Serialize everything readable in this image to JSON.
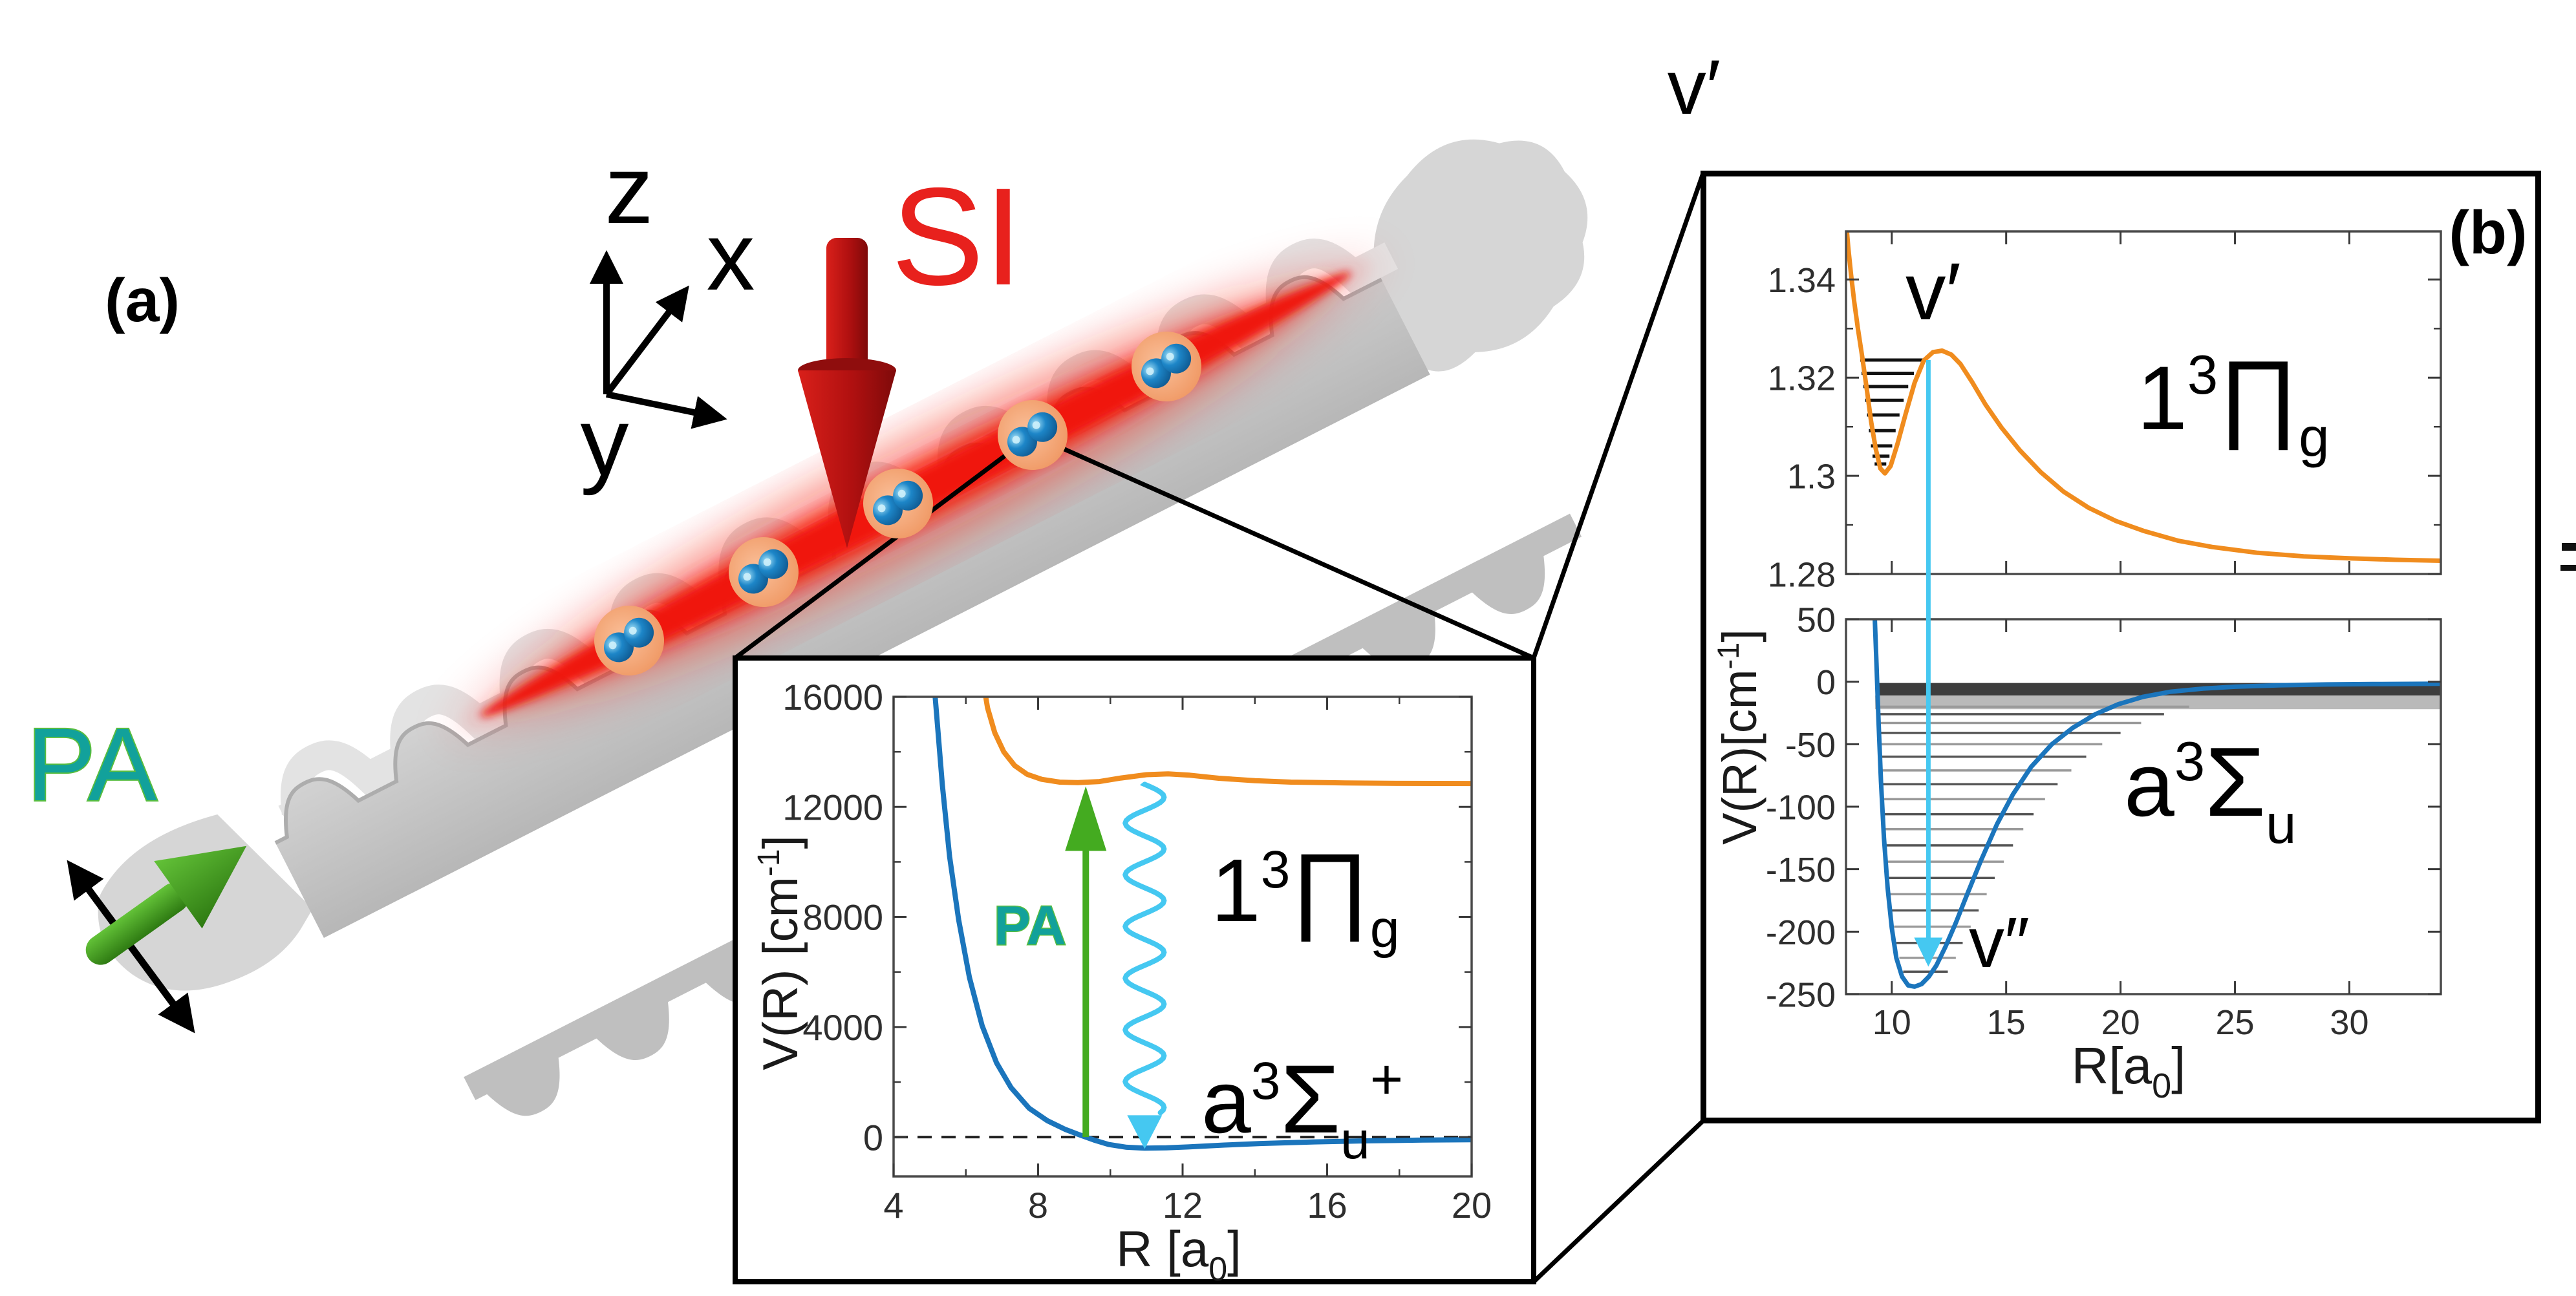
{
  "panel_a": {
    "label": "(a)",
    "axis_z": "z",
    "axis_x": "x",
    "axis_y": "y",
    "si_label": "SI",
    "pa_label": "PA",
    "atom_pair_count": 5,
    "colors": {
      "si_red": "#e8211d",
      "pa_teal": "#12a19b",
      "pa_text_stroke": "#58bd3e",
      "pa_arrow_green": "#4d9e28",
      "beam_red": "#f01c0c",
      "waveguide_gray": "#c6c6c6",
      "atom_blue": "#1d86c8",
      "atom_halo_peach": "#f5a876"
    }
  },
  "panel_b": {
    "label": "(b)",
    "v_prime_outer": "v′"
  },
  "chart_data": [
    {
      "id": "inset",
      "type": "line",
      "xlabel_parts": {
        "pre": "R [a",
        "sub": "0",
        "post": "]"
      },
      "ylabel_parts": {
        "pre": "V(R) [cm",
        "sup": "-1",
        "post": "]"
      },
      "xlim": [
        4,
        20
      ],
      "ylim": [
        -1430,
        16000
      ],
      "xticks": [
        4,
        8,
        12,
        16,
        20
      ],
      "xtick_labels": [
        "4",
        "8",
        "12",
        "16",
        "20"
      ],
      "xticks_minor": [
        6,
        10,
        14,
        18
      ],
      "yticks": [
        0,
        4000,
        8000,
        12000,
        16000
      ],
      "ytick_labels": [
        "0",
        "4000",
        "8000",
        "12000",
        "16000"
      ],
      "yticks_minor": [
        2000,
        6000,
        10000,
        14000
      ],
      "zero_line": 0,
      "series": [
        {
          "name": "a3Sigma_u_plus",
          "color": "#1b75bc",
          "width": 8,
          "x": [
            5.1,
            5.2,
            5.35,
            5.55,
            5.8,
            6.1,
            6.45,
            6.85,
            7.25,
            7.75,
            8.25,
            8.75,
            9.15,
            9.55,
            9.95,
            10.45,
            10.95,
            11.55,
            12.15,
            13.15,
            14.15,
            15.65,
            17.15,
            18.65,
            20.0
          ],
          "y": [
            16800,
            15200,
            12800,
            10200,
            7900,
            5800,
            4050,
            2700,
            1800,
            1050,
            600,
            280,
            80,
            -110,
            -270,
            -370,
            -400,
            -390,
            -360,
            -290,
            -235,
            -175,
            -135,
            -110,
            -95
          ]
        },
        {
          "name": "1_3Pi_g",
          "color": "#f08c1e",
          "width": 8,
          "x": [
            6.45,
            6.6,
            6.8,
            7.05,
            7.35,
            7.7,
            8.1,
            8.6,
            9.1,
            9.7,
            10.3,
            11.0,
            11.6,
            12.2,
            13.0,
            14.0,
            15.0,
            16.5,
            18.0,
            20.0
          ],
          "y": [
            16800,
            15600,
            14700,
            14000,
            13500,
            13180,
            13000,
            12900,
            12880,
            12920,
            13050,
            13170,
            13200,
            13150,
            13040,
            12950,
            12900,
            12870,
            12855,
            12850
          ]
        }
      ],
      "pa_arrow": {
        "x": 9.32,
        "v0": 0,
        "v1": 12750,
        "color": "#44ab20",
        "label": "PA"
      },
      "decay_arrow": {
        "x": 10.95,
        "v0": 12820,
        "v1": -430,
        "color": "#45c8f1"
      },
      "labels": {
        "upper_state": {
          "pre": "1",
          "sup": "3",
          "main": "∏",
          "sub": "g"
        },
        "lower_state": {
          "pre": "a",
          "sup": "3",
          "main": "Σ",
          "sub": "u",
          "sup2": "+"
        }
      }
    },
    {
      "id": "b_top",
      "type": "line",
      "xlim": [
        8,
        34
      ],
      "ylim": [
        1.28,
        1.3498
      ],
      "xticks": [
        10,
        15,
        20,
        25,
        30
      ],
      "yticks": [
        1.34,
        1.32,
        1.3,
        1.28
      ],
      "ytick_labels": [
        "1.34",
        "1.32",
        "1.3",
        "1.28"
      ],
      "yticks_minor": [
        1.33,
        1.31,
        1.29
      ],
      "series": [
        {
          "name": "1_3Pi_g",
          "color": "#f08c1e",
          "width": 7,
          "x": [
            8.0,
            8.1,
            8.22,
            8.36,
            8.52,
            8.7,
            8.9,
            9.1,
            9.3,
            9.5,
            9.7,
            9.95,
            10.25,
            10.6,
            11.0,
            11.4,
            11.8,
            12.2,
            12.6,
            13.0,
            13.5,
            14.1,
            14.8,
            15.6,
            16.5,
            17.5,
            18.6,
            19.8,
            21.0,
            22.5,
            24.0,
            26.0,
            28.0,
            30.0,
            32.0,
            34.0
          ],
          "y": [
            1.352,
            1.3465,
            1.341,
            1.3355,
            1.33,
            1.3245,
            1.318,
            1.311,
            1.3055,
            1.3015,
            1.3005,
            1.302,
            1.3065,
            1.3125,
            1.319,
            1.3235,
            1.3252,
            1.3255,
            1.3247,
            1.3228,
            1.3192,
            1.3145,
            1.3098,
            1.3052,
            1.3008,
            1.2968,
            1.2935,
            1.2908,
            1.2888,
            1.2868,
            1.2855,
            1.2843,
            1.2836,
            1.2832,
            1.2829,
            1.2827
          ]
        }
      ],
      "levels": [
        [
          1.3236,
          8.62,
          11.55
        ],
        [
          1.3209,
          8.68,
          10.97
        ],
        [
          1.3182,
          8.76,
          10.72
        ],
        [
          1.3154,
          8.84,
          10.52
        ],
        [
          1.3124,
          8.92,
          10.34
        ],
        [
          1.3092,
          9.0,
          10.17
        ],
        [
          1.3061,
          9.09,
          10.02
        ],
        [
          1.304,
          9.16,
          9.9
        ],
        [
          1.3024,
          9.25,
          9.76
        ]
      ],
      "cyan_line": {
        "x": 11.6,
        "v_top": 1.3236,
        "color": "#45c8f1"
      },
      "labels": {
        "v_label": "v′",
        "state": {
          "pre": "1",
          "sup": "3",
          "main": "∏",
          "sub": "g"
        }
      }
    },
    {
      "id": "b_bottom",
      "type": "line",
      "xlabel_parts": {
        "pre": "R[a",
        "sub": "0",
        "post": "]"
      },
      "ylabel_parts": {
        "pre": "V(R)[cm",
        "sup": "-1",
        "post": "]"
      },
      "xlim": [
        8,
        34
      ],
      "ylim": [
        -250,
        50
      ],
      "xticks": [
        10,
        15,
        20,
        25,
        30
      ],
      "xtick_labels": [
        "10",
        "15",
        "20",
        "25",
        "30"
      ],
      "yticks": [
        50,
        0,
        -50,
        -100,
        -150,
        -200,
        -250
      ],
      "ytick_labels": [
        "50",
        "0",
        "-50",
        "-100",
        "-150",
        "-200",
        "-250"
      ],
      "series": [
        {
          "name": "a3Sigma_u",
          "color": "#1b75bc",
          "width": 7,
          "x": [
            9.25,
            9.33,
            9.42,
            9.53,
            9.66,
            9.82,
            10.0,
            10.2,
            10.45,
            10.72,
            11.0,
            11.3,
            11.62,
            11.95,
            12.35,
            12.8,
            13.3,
            13.9,
            14.6,
            15.3,
            16.1,
            17.0,
            17.9,
            18.9,
            19.9,
            21.0,
            22.2,
            23.6,
            25.0,
            27.0,
            29.0,
            31.0,
            34.0
          ],
          "y": [
            55,
            15,
            -30,
            -80,
            -125,
            -165,
            -197,
            -221,
            -236,
            -243,
            -244,
            -242,
            -236,
            -227,
            -212,
            -193,
            -170,
            -143,
            -114,
            -90,
            -68,
            -50,
            -37,
            -26,
            -18,
            -12,
            -8,
            -5.5,
            -4,
            -2.8,
            -2.2,
            -1.9,
            -1.6
          ]
        }
      ],
      "bands": [
        {
          "v0": -1,
          "v1": -11,
          "x0": 9.35,
          "x1": 34,
          "color": "#3d3d3d"
        },
        {
          "v0": -11,
          "v1": -22,
          "x0": 9.27,
          "x1": 34,
          "color": "#b9b9b9"
        }
      ],
      "levels": [
        [
          -232,
          10.5,
          12.45
        ],
        [
          -221,
          10.33,
          12.8
        ],
        [
          -209,
          10.2,
          13.1
        ],
        [
          -196,
          10.1,
          13.45
        ],
        [
          -183,
          10.0,
          13.8
        ],
        [
          -170,
          9.92,
          14.15
        ],
        [
          -157,
          9.84,
          14.5
        ],
        [
          -144,
          9.77,
          14.9
        ],
        [
          -131,
          9.71,
          15.3
        ],
        [
          -118,
          9.65,
          15.75
        ],
        [
          -106,
          9.6,
          16.2
        ],
        [
          -94,
          9.55,
          16.7
        ],
        [
          -82,
          9.51,
          17.25
        ],
        [
          -71,
          9.47,
          17.85
        ],
        [
          -60,
          9.44,
          18.5
        ],
        [
          -50,
          9.41,
          19.2
        ],
        [
          -41,
          9.38,
          20.0
        ],
        [
          -33,
          9.35,
          20.9
        ],
        [
          -26,
          9.33,
          21.9
        ],
        [
          -20,
          9.31,
          23.0
        ]
      ],
      "cyan_arrow": {
        "x": 11.6,
        "v0": 50,
        "v1": -228,
        "color": "#45c8f1"
      },
      "labels": {
        "v_label": "v″",
        "state": {
          "pre": "a",
          "sup": "3",
          "main": "Σ",
          "sub": "u"
        }
      }
    }
  ]
}
